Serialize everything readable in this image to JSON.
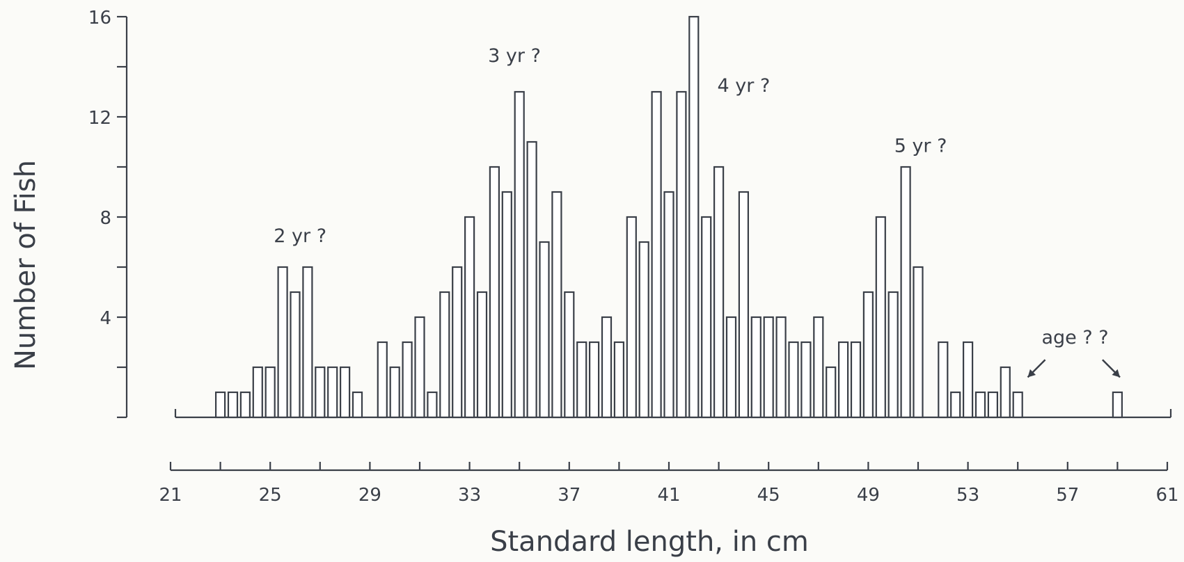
{
  "chart_data": {
    "type": "bar",
    "title": "",
    "xlabel": "Standard length, in cm",
    "ylabel": "Number of Fish",
    "xlim": [
      21,
      61
    ],
    "ylim": [
      0,
      16
    ],
    "x_ticks": [
      "21",
      "25",
      "29",
      "33",
      "37",
      "41",
      "45",
      "49",
      "53",
      "57",
      "61"
    ],
    "y_ticks": [
      "4",
      "8",
      "12",
      "16"
    ],
    "grid": false,
    "colors": {
      "ink": "#3a3f48",
      "background": "#fbfbf8",
      "bar_fill": "#ffffff"
    },
    "bars": [
      {
        "x": 23.0,
        "count": 1
      },
      {
        "x": 23.5,
        "count": 1
      },
      {
        "x": 24.0,
        "count": 1
      },
      {
        "x": 24.5,
        "count": 2
      },
      {
        "x": 25.0,
        "count": 2
      },
      {
        "x": 25.5,
        "count": 6
      },
      {
        "x": 26.0,
        "count": 5
      },
      {
        "x": 26.5,
        "count": 6
      },
      {
        "x": 27.0,
        "count": 2
      },
      {
        "x": 27.5,
        "count": 2
      },
      {
        "x": 28.0,
        "count": 2
      },
      {
        "x": 28.5,
        "count": 1
      },
      {
        "x": 29.5,
        "count": 3
      },
      {
        "x": 30.0,
        "count": 2
      },
      {
        "x": 30.5,
        "count": 3
      },
      {
        "x": 31.0,
        "count": 4
      },
      {
        "x": 31.5,
        "count": 1
      },
      {
        "x": 32.0,
        "count": 5
      },
      {
        "x": 32.5,
        "count": 6
      },
      {
        "x": 33.0,
        "count": 8
      },
      {
        "x": 33.5,
        "count": 5
      },
      {
        "x": 34.0,
        "count": 10
      },
      {
        "x": 34.5,
        "count": 9
      },
      {
        "x": 35.0,
        "count": 13
      },
      {
        "x": 35.5,
        "count": 11
      },
      {
        "x": 36.0,
        "count": 7
      },
      {
        "x": 36.5,
        "count": 9
      },
      {
        "x": 37.0,
        "count": 5
      },
      {
        "x": 37.5,
        "count": 3
      },
      {
        "x": 38.0,
        "count": 3
      },
      {
        "x": 38.5,
        "count": 4
      },
      {
        "x": 39.0,
        "count": 3
      },
      {
        "x": 39.5,
        "count": 8
      },
      {
        "x": 40.0,
        "count": 7
      },
      {
        "x": 40.5,
        "count": 13
      },
      {
        "x": 41.0,
        "count": 9
      },
      {
        "x": 41.5,
        "count": 13
      },
      {
        "x": 42.0,
        "count": 16
      },
      {
        "x": 42.5,
        "count": 8
      },
      {
        "x": 43.0,
        "count": 10
      },
      {
        "x": 43.5,
        "count": 4
      },
      {
        "x": 44.0,
        "count": 9
      },
      {
        "x": 44.5,
        "count": 4
      },
      {
        "x": 45.0,
        "count": 4
      },
      {
        "x": 45.5,
        "count": 4
      },
      {
        "x": 46.0,
        "count": 3
      },
      {
        "x": 46.5,
        "count": 3
      },
      {
        "x": 47.0,
        "count": 4
      },
      {
        "x": 47.5,
        "count": 2
      },
      {
        "x": 48.0,
        "count": 3
      },
      {
        "x": 48.5,
        "count": 3
      },
      {
        "x": 49.0,
        "count": 5
      },
      {
        "x": 49.5,
        "count": 8
      },
      {
        "x": 50.0,
        "count": 5
      },
      {
        "x": 50.5,
        "count": 10
      },
      {
        "x": 51.0,
        "count": 6
      },
      {
        "x": 52.0,
        "count": 3
      },
      {
        "x": 52.5,
        "count": 1
      },
      {
        "x": 53.0,
        "count": 3
      },
      {
        "x": 53.5,
        "count": 1
      },
      {
        "x": 54.0,
        "count": 1
      },
      {
        "x": 54.5,
        "count": 2
      },
      {
        "x": 55.0,
        "count": 1
      },
      {
        "x": 59.0,
        "count": 1
      }
    ],
    "annotations": [
      {
        "text": "2 yr ?",
        "x": 26.2,
        "y": 7.0
      },
      {
        "text": "3 yr ?",
        "x": 34.8,
        "y": 14.2
      },
      {
        "text": "4 yr ?",
        "x": 44.0,
        "y": 13.0
      },
      {
        "text": "5 yr ?",
        "x": 51.1,
        "y": 10.6
      },
      {
        "text": "age ? ?",
        "x": 57.3,
        "y": 2.95
      }
    ],
    "arrows": [
      {
        "from": [
          56.1,
          2.3
        ],
        "to": [
          55.4,
          1.6
        ]
      },
      {
        "from": [
          58.4,
          2.3
        ],
        "to": [
          59.1,
          1.6
        ]
      }
    ]
  }
}
